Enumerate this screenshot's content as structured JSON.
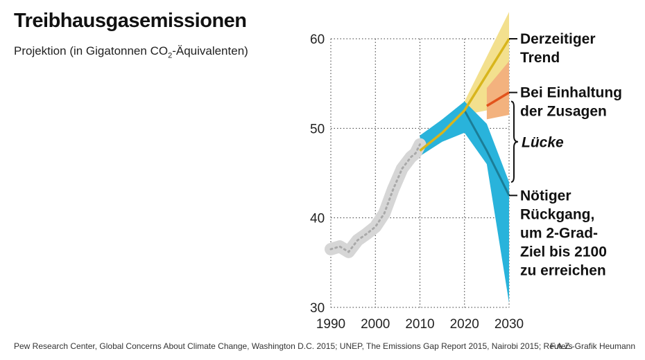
{
  "header": {
    "title": "Treibhausgasemissionen",
    "subtitle_pre": "Projektion (in Gigatonnen CO",
    "subtitle_sub": "2",
    "subtitle_post": "-Äquivalenten)"
  },
  "footer": {
    "source": "Pew Research Center, Global Concerns About Climate Change, Washington D.C. 2015; UNEP, The Emissions Gap Report 2015, Nairobi 2015; Reuters",
    "credit": "F.A.Z.-Grafik Heumann"
  },
  "colors": {
    "history": "#d6d6d6",
    "history_dots": "#a9a9a9",
    "trend_band": "#f3e08e",
    "trend_line": "#d8b51c",
    "pledge_band": "#f3b27e",
    "pledge_line": "#e2531c",
    "required_band": "#29b3db",
    "required_line": "#1b7d97",
    "grid": "#333333"
  },
  "chart_data": {
    "type": "line",
    "xlim": [
      1990,
      2030
    ],
    "ylim": [
      30,
      60
    ],
    "x_ticks": [
      "1990",
      "2000",
      "2010",
      "2020",
      "2030"
    ],
    "y_ticks": [
      "30",
      "40",
      "50",
      "60"
    ],
    "grid": "dotted",
    "series": [
      {
        "key": "history",
        "x": [
          1990,
          1992,
          1994,
          1996,
          1998,
          2000,
          2002,
          2004,
          2006,
          2008,
          2009,
          2010
        ],
        "y": [
          36.5,
          36.8,
          36.2,
          37.5,
          38.2,
          39.0,
          40.5,
          43.2,
          45.5,
          46.8,
          47.2,
          48.2
        ]
      },
      {
        "key": "trend",
        "label": "Derzeitiger Trend",
        "x": [
          2010,
          2015,
          2020,
          2030
        ],
        "y": [
          47.5,
          49.5,
          52.0,
          60.0
        ],
        "band_x": [
          2010,
          2015,
          2020,
          2030
        ],
        "band_low": [
          46.9,
          48.5,
          51.5,
          52.5
        ],
        "band_high": [
          48.2,
          50.2,
          53.0,
          63.0
        ]
      },
      {
        "key": "pledge",
        "label_lines": [
          "Bei Einhaltung",
          "der Zusagen"
        ],
        "x": [
          2025,
          2030
        ],
        "y": [
          52.5,
          54.0
        ],
        "band_x": [
          2025,
          2030
        ],
        "band_low": [
          51.0,
          51.5
        ],
        "band_high": [
          54.5,
          57.5
        ]
      },
      {
        "key": "required",
        "label_lines": [
          "Nötiger",
          "Rückgang,",
          "um 2-Grad-",
          "Ziel bis 2100",
          "zu erreichen"
        ],
        "x": [
          2020,
          2025,
          2030
        ],
        "y": [
          52.0,
          47.5,
          42.5
        ],
        "band_x": [
          2010,
          2015,
          2020,
          2025,
          2030
        ],
        "band_low": [
          46.9,
          48.5,
          49.5,
          46.0,
          30.5
        ],
        "band_high": [
          49.2,
          51.0,
          53.0,
          50.5,
          44.0
        ]
      }
    ],
    "annotations": [
      {
        "text": "Lücke",
        "from_y": 53.0,
        "to_y": 44.0,
        "x": 2030
      }
    ]
  }
}
